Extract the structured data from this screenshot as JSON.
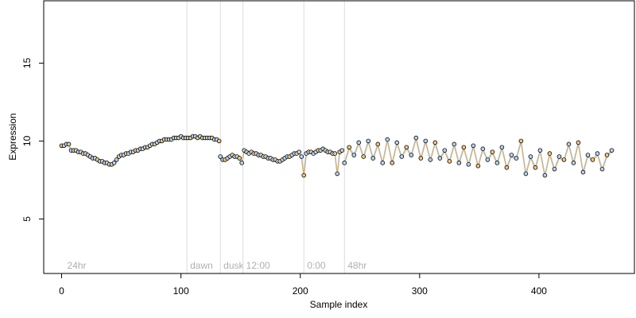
{
  "chart_data": {
    "type": "scatter",
    "title": "",
    "xlabel": "Sample index",
    "ylabel": "Expression",
    "xlim": [
      -15,
      480
    ],
    "ylim": [
      1.5,
      19
    ],
    "x_ticks": [
      0,
      100,
      200,
      300,
      400
    ],
    "y_ticks": [
      5,
      10,
      15
    ],
    "grid": false,
    "legend": "none",
    "section_markers": [
      {
        "x": 2,
        "label": "24hr",
        "line": false
      },
      {
        "x": 105,
        "label": "dawn",
        "line": true
      },
      {
        "x": 133,
        "label": "dusk",
        "line": true
      },
      {
        "x": 152,
        "label": "12:00",
        "line": true
      },
      {
        "x": 203,
        "label": "0:00",
        "line": true
      },
      {
        "x": 237,
        "label": "48hr",
        "line": true
      }
    ],
    "colors": {
      "line_light": "#a3c4e8",
      "line_orange": "#e8a33c",
      "point_blue": "#b7d3f0",
      "point_orange": "#f5c67a",
      "point_outline": "#000000",
      "marker_line": "#dcdcdc",
      "marker_text": "#b0b0b0"
    },
    "series": [
      {
        "x": [
          0,
          2,
          4,
          6,
          8,
          10,
          12,
          14,
          16,
          18,
          20,
          22,
          24,
          26,
          28,
          30,
          32,
          34,
          36,
          38,
          40,
          42,
          44,
          46,
          48,
          50,
          52,
          54,
          56,
          58,
          60,
          62,
          64,
          66,
          68,
          70,
          72,
          74,
          76,
          78,
          80,
          82,
          84,
          86,
          88,
          90,
          92,
          94,
          96,
          98,
          100,
          102,
          104,
          106,
          108,
          110,
          112,
          114,
          116,
          118,
          120,
          122,
          124,
          126,
          128,
          130,
          132
        ],
        "y": [
          9.7,
          9.7,
          9.8,
          9.8,
          9.4,
          9.4,
          9.4,
          9.3,
          9.3,
          9.2,
          9.2,
          9.1,
          9.0,
          8.9,
          8.9,
          8.8,
          8.7,
          8.7,
          8.6,
          8.6,
          8.5,
          8.5,
          8.6,
          8.8,
          9.0,
          9.1,
          9.1,
          9.2,
          9.2,
          9.3,
          9.3,
          9.4,
          9.4,
          9.5,
          9.5,
          9.6,
          9.6,
          9.7,
          9.8,
          9.8,
          9.9,
          10.0,
          10.0,
          10.1,
          10.1,
          10.1,
          10.1,
          10.2,
          10.2,
          10.2,
          10.3,
          10.2,
          10.2,
          10.2,
          10.2,
          10.3,
          10.3,
          10.2,
          10.3,
          10.2,
          10.2,
          10.2,
          10.2,
          10.2,
          10.1,
          10.1,
          10.0
        ]
      },
      {
        "x": [
          133,
          135,
          137,
          139,
          141,
          143,
          145,
          147,
          149,
          151,
          153,
          155,
          157,
          159,
          161,
          163,
          165,
          167,
          169,
          171,
          173,
          175,
          177,
          179,
          181,
          183,
          185,
          187,
          189,
          191,
          193,
          195,
          197,
          199,
          201,
          203,
          205,
          207,
          209,
          211,
          213,
          215,
          217,
          219,
          221,
          223,
          225,
          227,
          229,
          231,
          233,
          235
        ],
        "y": [
          9.0,
          8.8,
          8.8,
          8.9,
          9.0,
          9.1,
          9.0,
          9.0,
          8.9,
          8.6,
          9.4,
          9.3,
          9.2,
          9.3,
          9.2,
          9.2,
          9.1,
          9.1,
          9.0,
          9.0,
          8.9,
          8.9,
          8.8,
          8.8,
          8.7,
          8.7,
          8.8,
          8.9,
          9.0,
          9.0,
          9.1,
          9.2,
          9.2,
          9.3,
          9.0,
          7.8,
          9.2,
          9.3,
          9.3,
          9.2,
          9.3,
          9.4,
          9.4,
          9.5,
          9.4,
          9.3,
          9.3,
          9.2,
          9.2,
          7.9,
          9.3,
          9.4
        ]
      },
      {
        "x": [
          237,
          241,
          245,
          249,
          253,
          257,
          261,
          265,
          269,
          273,
          277,
          281,
          285,
          289,
          293,
          297,
          301,
          305,
          309,
          313,
          317,
          321,
          325,
          329,
          333,
          337,
          341,
          345,
          349,
          353,
          357,
          361,
          365,
          369,
          373,
          377,
          381,
          385,
          389,
          393,
          397,
          401,
          405,
          409,
          413,
          417,
          421,
          425,
          429,
          433,
          437,
          441,
          445,
          449,
          453,
          457,
          461
        ],
        "y": [
          8.6,
          9.6,
          9.1,
          9.9,
          9.0,
          10.0,
          8.9,
          9.8,
          8.6,
          10.1,
          8.6,
          9.9,
          9.0,
          9.6,
          9.1,
          10.2,
          8.9,
          10.0,
          8.8,
          9.9,
          8.9,
          9.4,
          8.7,
          9.8,
          8.6,
          9.6,
          8.5,
          9.7,
          8.4,
          9.5,
          8.8,
          9.3,
          8.6,
          9.6,
          8.3,
          9.1,
          8.9,
          10.0,
          7.9,
          9.0,
          8.3,
          9.4,
          7.8,
          9.2,
          8.2,
          9.0,
          8.8,
          9.8,
          8.6,
          9.9,
          8.0,
          9.1,
          8.8,
          9.2,
          8.2,
          9.1,
          9.4
        ]
      }
    ]
  }
}
